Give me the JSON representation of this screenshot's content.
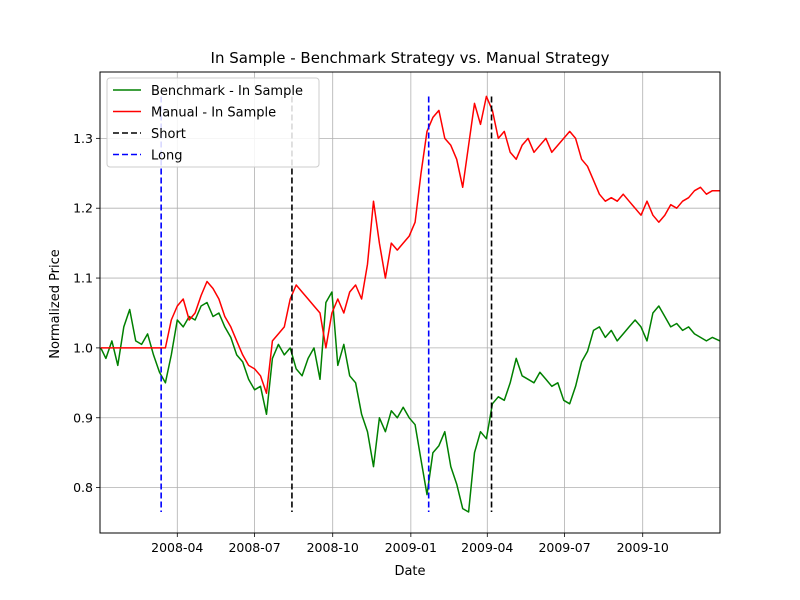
{
  "chart_data": {
    "type": "line",
    "title": "In Sample - Benchmark Strategy vs. Manual Strategy",
    "xlabel": "Date",
    "ylabel": "Normalized Price",
    "xlim": [
      "2008-01-01",
      "2009-12-31"
    ],
    "ylim": [
      0.735,
      1.395
    ],
    "grid": true,
    "legend_position": "top-left",
    "x_ticks": [
      {
        "date": "2008-04-01",
        "label": "2008-04"
      },
      {
        "date": "2008-07-01",
        "label": "2008-07"
      },
      {
        "date": "2008-10-01",
        "label": "2008-10"
      },
      {
        "date": "2009-01-01",
        "label": "2009-01"
      },
      {
        "date": "2009-04-01",
        "label": "2009-04"
      },
      {
        "date": "2009-07-01",
        "label": "2009-07"
      },
      {
        "date": "2009-10-01",
        "label": "2009-10"
      }
    ],
    "y_ticks": [
      {
        "value": 0.8,
        "label": "0.8"
      },
      {
        "value": 0.9,
        "label": "0.9"
      },
      {
        "value": 1.0,
        "label": "1.0"
      },
      {
        "value": 1.1,
        "label": "1.1"
      },
      {
        "value": 1.2,
        "label": "1.2"
      },
      {
        "value": 1.3,
        "label": "1.3"
      }
    ],
    "series": [
      {
        "name": "Benchmark - In Sample",
        "color": "#008000",
        "points": [
          [
            "2008-01-02",
            1.0
          ],
          [
            "2008-01-08",
            0.985
          ],
          [
            "2008-01-15",
            1.01
          ],
          [
            "2008-01-22",
            0.975
          ],
          [
            "2008-01-29",
            1.03
          ],
          [
            "2008-02-05",
            1.055
          ],
          [
            "2008-02-12",
            1.01
          ],
          [
            "2008-02-19",
            1.005
          ],
          [
            "2008-02-26",
            1.02
          ],
          [
            "2008-03-04",
            0.99
          ],
          [
            "2008-03-11",
            0.965
          ],
          [
            "2008-03-18",
            0.95
          ],
          [
            "2008-03-25",
            0.99
          ],
          [
            "2008-04-01",
            1.04
          ],
          [
            "2008-04-08",
            1.03
          ],
          [
            "2008-04-15",
            1.045
          ],
          [
            "2008-04-22",
            1.04
          ],
          [
            "2008-04-29",
            1.06
          ],
          [
            "2008-05-06",
            1.065
          ],
          [
            "2008-05-13",
            1.045
          ],
          [
            "2008-05-20",
            1.05
          ],
          [
            "2008-05-27",
            1.03
          ],
          [
            "2008-06-03",
            1.015
          ],
          [
            "2008-06-10",
            0.99
          ],
          [
            "2008-06-17",
            0.98
          ],
          [
            "2008-06-24",
            0.955
          ],
          [
            "2008-07-01",
            0.94
          ],
          [
            "2008-07-08",
            0.945
          ],
          [
            "2008-07-15",
            0.905
          ],
          [
            "2008-07-22",
            0.985
          ],
          [
            "2008-07-29",
            1.005
          ],
          [
            "2008-08-05",
            0.99
          ],
          [
            "2008-08-12",
            1.0
          ],
          [
            "2008-08-19",
            0.97
          ],
          [
            "2008-08-26",
            0.96
          ],
          [
            "2008-09-02",
            0.985
          ],
          [
            "2008-09-09",
            1.0
          ],
          [
            "2008-09-16",
            0.955
          ],
          [
            "2008-09-23",
            1.065
          ],
          [
            "2008-09-30",
            1.08
          ],
          [
            "2008-10-07",
            0.975
          ],
          [
            "2008-10-14",
            1.005
          ],
          [
            "2008-10-21",
            0.96
          ],
          [
            "2008-10-28",
            0.95
          ],
          [
            "2008-11-04",
            0.905
          ],
          [
            "2008-11-11",
            0.88
          ],
          [
            "2008-11-18",
            0.83
          ],
          [
            "2008-11-25",
            0.9
          ],
          [
            "2008-12-02",
            0.88
          ],
          [
            "2008-12-09",
            0.91
          ],
          [
            "2008-12-16",
            0.9
          ],
          [
            "2008-12-23",
            0.915
          ],
          [
            "2008-12-30",
            0.9
          ],
          [
            "2009-01-06",
            0.89
          ],
          [
            "2009-01-13",
            0.84
          ],
          [
            "2009-01-20",
            0.79
          ],
          [
            "2009-01-27",
            0.85
          ],
          [
            "2009-02-03",
            0.86
          ],
          [
            "2009-02-10",
            0.88
          ],
          [
            "2009-02-17",
            0.83
          ],
          [
            "2009-02-24",
            0.805
          ],
          [
            "2009-03-03",
            0.77
          ],
          [
            "2009-03-10",
            0.765
          ],
          [
            "2009-03-17",
            0.85
          ],
          [
            "2009-03-24",
            0.88
          ],
          [
            "2009-03-31",
            0.87
          ],
          [
            "2009-04-07",
            0.92
          ],
          [
            "2009-04-14",
            0.93
          ],
          [
            "2009-04-21",
            0.925
          ],
          [
            "2009-04-28",
            0.95
          ],
          [
            "2009-05-05",
            0.985
          ],
          [
            "2009-05-12",
            0.96
          ],
          [
            "2009-05-19",
            0.955
          ],
          [
            "2009-05-26",
            0.95
          ],
          [
            "2009-06-02",
            0.965
          ],
          [
            "2009-06-09",
            0.955
          ],
          [
            "2009-06-16",
            0.945
          ],
          [
            "2009-06-23",
            0.95
          ],
          [
            "2009-06-30",
            0.925
          ],
          [
            "2009-07-07",
            0.92
          ],
          [
            "2009-07-14",
            0.945
          ],
          [
            "2009-07-21",
            0.98
          ],
          [
            "2009-07-28",
            0.995
          ],
          [
            "2009-08-04",
            1.025
          ],
          [
            "2009-08-11",
            1.03
          ],
          [
            "2009-08-18",
            1.015
          ],
          [
            "2009-08-25",
            1.025
          ],
          [
            "2009-09-01",
            1.01
          ],
          [
            "2009-09-08",
            1.02
          ],
          [
            "2009-09-15",
            1.03
          ],
          [
            "2009-09-22",
            1.04
          ],
          [
            "2009-09-29",
            1.03
          ],
          [
            "2009-10-06",
            1.01
          ],
          [
            "2009-10-13",
            1.05
          ],
          [
            "2009-10-20",
            1.06
          ],
          [
            "2009-10-27",
            1.045
          ],
          [
            "2009-11-03",
            1.03
          ],
          [
            "2009-11-10",
            1.035
          ],
          [
            "2009-11-17",
            1.025
          ],
          [
            "2009-11-24",
            1.03
          ],
          [
            "2009-12-01",
            1.02
          ],
          [
            "2009-12-08",
            1.015
          ],
          [
            "2009-12-15",
            1.01
          ],
          [
            "2009-12-22",
            1.015
          ],
          [
            "2009-12-31",
            1.01
          ]
        ]
      },
      {
        "name": "Manual - In Sample",
        "color": "#ff0000",
        "points": [
          [
            "2008-01-02",
            1.0
          ],
          [
            "2008-01-15",
            1.0
          ],
          [
            "2008-01-29",
            1.0
          ],
          [
            "2008-02-12",
            1.0
          ],
          [
            "2008-02-26",
            1.0
          ],
          [
            "2008-03-11",
            1.0
          ],
          [
            "2008-03-18",
            1.0
          ],
          [
            "2008-03-25",
            1.04
          ],
          [
            "2008-04-01",
            1.06
          ],
          [
            "2008-04-08",
            1.07
          ],
          [
            "2008-04-15",
            1.04
          ],
          [
            "2008-04-22",
            1.05
          ],
          [
            "2008-04-29",
            1.075
          ],
          [
            "2008-05-06",
            1.095
          ],
          [
            "2008-05-13",
            1.085
          ],
          [
            "2008-05-20",
            1.07
          ],
          [
            "2008-05-27",
            1.045
          ],
          [
            "2008-06-03",
            1.03
          ],
          [
            "2008-06-10",
            1.01
          ],
          [
            "2008-06-17",
            0.99
          ],
          [
            "2008-06-24",
            0.975
          ],
          [
            "2008-07-01",
            0.97
          ],
          [
            "2008-07-08",
            0.96
          ],
          [
            "2008-07-15",
            0.935
          ],
          [
            "2008-07-22",
            1.01
          ],
          [
            "2008-07-29",
            1.02
          ],
          [
            "2008-08-05",
            1.03
          ],
          [
            "2008-08-12",
            1.07
          ],
          [
            "2008-08-19",
            1.09
          ],
          [
            "2008-08-26",
            1.08
          ],
          [
            "2008-09-02",
            1.07
          ],
          [
            "2008-09-09",
            1.06
          ],
          [
            "2008-09-16",
            1.05
          ],
          [
            "2008-09-23",
            1.0
          ],
          [
            "2008-09-30",
            1.05
          ],
          [
            "2008-10-07",
            1.07
          ],
          [
            "2008-10-14",
            1.05
          ],
          [
            "2008-10-21",
            1.08
          ],
          [
            "2008-10-28",
            1.09
          ],
          [
            "2008-11-04",
            1.07
          ],
          [
            "2008-11-11",
            1.12
          ],
          [
            "2008-11-18",
            1.21
          ],
          [
            "2008-11-25",
            1.15
          ],
          [
            "2008-12-02",
            1.1
          ],
          [
            "2008-12-09",
            1.15
          ],
          [
            "2008-12-16",
            1.14
          ],
          [
            "2008-12-23",
            1.15
          ],
          [
            "2008-12-30",
            1.16
          ],
          [
            "2009-01-06",
            1.18
          ],
          [
            "2009-01-13",
            1.25
          ],
          [
            "2009-01-20",
            1.31
          ],
          [
            "2009-01-27",
            1.33
          ],
          [
            "2009-02-03",
            1.34
          ],
          [
            "2009-02-10",
            1.3
          ],
          [
            "2009-02-17",
            1.29
          ],
          [
            "2009-02-24",
            1.27
          ],
          [
            "2009-03-03",
            1.23
          ],
          [
            "2009-03-10",
            1.29
          ],
          [
            "2009-03-17",
            1.35
          ],
          [
            "2009-03-24",
            1.32
          ],
          [
            "2009-03-31",
            1.36
          ],
          [
            "2009-04-07",
            1.34
          ],
          [
            "2009-04-14",
            1.3
          ],
          [
            "2009-04-21",
            1.31
          ],
          [
            "2009-04-28",
            1.28
          ],
          [
            "2009-05-05",
            1.27
          ],
          [
            "2009-05-12",
            1.29
          ],
          [
            "2009-05-19",
            1.3
          ],
          [
            "2009-05-26",
            1.28
          ],
          [
            "2009-06-02",
            1.29
          ],
          [
            "2009-06-09",
            1.3
          ],
          [
            "2009-06-16",
            1.28
          ],
          [
            "2009-06-23",
            1.29
          ],
          [
            "2009-06-30",
            1.3
          ],
          [
            "2009-07-07",
            1.31
          ],
          [
            "2009-07-14",
            1.3
          ],
          [
            "2009-07-21",
            1.27
          ],
          [
            "2009-07-28",
            1.26
          ],
          [
            "2009-08-04",
            1.24
          ],
          [
            "2009-08-11",
            1.22
          ],
          [
            "2009-08-18",
            1.21
          ],
          [
            "2009-08-25",
            1.215
          ],
          [
            "2009-09-01",
            1.21
          ],
          [
            "2009-09-08",
            1.22
          ],
          [
            "2009-09-15",
            1.21
          ],
          [
            "2009-09-22",
            1.2
          ],
          [
            "2009-09-29",
            1.19
          ],
          [
            "2009-10-06",
            1.21
          ],
          [
            "2009-10-13",
            1.19
          ],
          [
            "2009-10-20",
            1.18
          ],
          [
            "2009-10-27",
            1.19
          ],
          [
            "2009-11-03",
            1.205
          ],
          [
            "2009-11-10",
            1.2
          ],
          [
            "2009-11-17",
            1.21
          ],
          [
            "2009-11-24",
            1.215
          ],
          [
            "2009-12-01",
            1.225
          ],
          [
            "2009-12-08",
            1.23
          ],
          [
            "2009-12-15",
            1.22
          ],
          [
            "2009-12-22",
            1.225
          ],
          [
            "2009-12-31",
            1.225
          ]
        ]
      }
    ],
    "vlines": [
      {
        "date": "2008-03-13",
        "series": "Long"
      },
      {
        "date": "2008-08-14",
        "series": "Short"
      },
      {
        "date": "2009-01-22",
        "series": "Long"
      },
      {
        "date": "2009-04-06",
        "series": "Short"
      }
    ],
    "vline_range": [
      0.765,
      1.36
    ],
    "legend": [
      {
        "label": "Benchmark - In Sample",
        "color": "#008000",
        "style": "solid"
      },
      {
        "label": "Manual - In Sample",
        "color": "#ff0000",
        "style": "solid"
      },
      {
        "label": "Short",
        "color": "#000000",
        "style": "dashed"
      },
      {
        "label": "Long",
        "color": "#0000ff",
        "style": "dashed"
      }
    ]
  }
}
